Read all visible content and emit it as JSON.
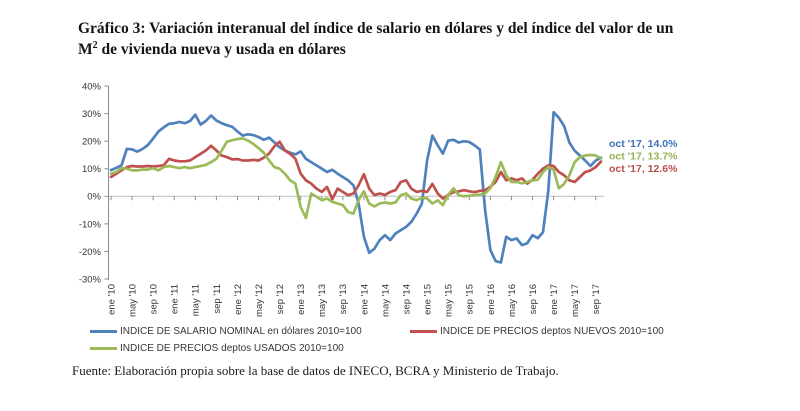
{
  "document": {
    "title_line1": "Gráfico 3: Variación interanual del índice de salario en dólares y del índice del valor de un",
    "title_line2_base": "M",
    "title_line2_sup": "2",
    "title_line2_rest": " de vivienda nueva y usada en dólares",
    "source_note": "Fuente: Elaboración propia sobre la base de datos de INECO, BCRA y Ministerio de Trabajo."
  },
  "chart_data": {
    "type": "line",
    "title": "Gráfico 3: Variación interanual del índice de salario en dólares y del índice del valor de un M² de vivienda nueva y usada en dólares",
    "xlabel": "",
    "ylabel": "",
    "ylim": [
      -30,
      40
    ],
    "grid": "zero-line-only",
    "legend_position": "bottom",
    "x_range_months": "ene '10 a oct '17 (mensual, 94 puntos)",
    "x_tick_every": 4,
    "x_tick_labels": [
      "ene '10",
      "may '10",
      "sep '10",
      "ene '11",
      "may '11",
      "sep '11",
      "ene '12",
      "may '12",
      "sep '12",
      "ene '13",
      "may '13",
      "sep '13",
      "ene '14",
      "may '14",
      "sep '14",
      "ene '15",
      "may '15",
      "sep '15",
      "ene '16",
      "may '16",
      "sep '16",
      "ene '17",
      "may '17",
      "sep '17"
    ],
    "y_tick_labels": [
      "40%",
      "30%",
      "20%",
      "10%",
      "0%",
      "-10%",
      "-20%",
      "-30%"
    ],
    "series": [
      {
        "key": "salario-nominal",
        "name": "INDICE DE SALARIO NOMINAL en dólares 2010=100",
        "color": "#4F81BD",
        "end_value": "14.0%",
        "values": [
          9.5,
          10.3,
          11.2,
          17.2,
          17,
          16.2,
          17.2,
          18.6,
          21,
          23.5,
          25,
          26.3,
          26.5,
          27,
          26.5,
          27.3,
          29.6,
          26,
          27.3,
          29.3,
          27.5,
          26.5,
          25.8,
          25.2,
          23.5,
          22,
          22.5,
          22.2,
          21.5,
          20.5,
          21.3,
          19.6,
          17.8,
          16.6,
          15.8,
          15.2,
          16.3,
          13.6,
          12.4,
          11.2,
          10,
          8.8,
          9.6,
          8.2,
          7,
          5.8,
          4,
          -2.6,
          -14.7,
          -20.5,
          -19,
          -15.9,
          -14.1,
          -15.9,
          -13.5,
          -12.3,
          -11.1,
          -9.3,
          -6.3,
          -2.6,
          13,
          22,
          18.5,
          15.5,
          20.2,
          20.5,
          19.5,
          20,
          19.7,
          18.5,
          17,
          -5,
          -19.5,
          -23.5,
          -24,
          -14.7,
          -15.9,
          -15.3,
          -17.7,
          -17,
          -14.1,
          -15.2,
          -13,
          2,
          30.5,
          28.5,
          25.5,
          19.5,
          16.5,
          14.8,
          13,
          11,
          13,
          14
        ]
      },
      {
        "key": "precios-nuevos",
        "name": "INDICE DE PRECIOS deptos NUEVOS 2010=100",
        "color": "#C0504D",
        "end_value": "12.6%",
        "values": [
          7,
          8.2,
          9.4,
          10.6,
          11,
          10.8,
          10.8,
          11,
          10.8,
          11,
          11.2,
          13.6,
          13,
          12.7,
          12.7,
          13,
          14.2,
          15.4,
          16.6,
          18.3,
          16.6,
          14.8,
          14.2,
          13.4,
          13.5,
          13,
          13,
          13.2,
          13,
          14,
          15.5,
          18.1,
          19.8,
          16.6,
          15.4,
          13.6,
          8.2,
          5.8,
          4.6,
          2.8,
          1.6,
          3.4,
          -1,
          2.8,
          1.6,
          0.4,
          1,
          4,
          8,
          2.8,
          0.4,
          1,
          0.5,
          1.6,
          2.2,
          5.2,
          5.8,
          2.8,
          1.6,
          2,
          1.6,
          4.5,
          1,
          -0.8,
          0.5,
          1.5,
          1.8,
          2.2,
          1.8,
          1.5,
          2,
          2.2,
          3.5,
          5.2,
          8.8,
          5.8,
          6.5,
          5.8,
          6.5,
          4.6,
          6,
          8.2,
          10,
          11.2,
          11,
          8.8,
          7.6,
          5.8,
          5.2,
          7,
          8.8,
          9.4,
          10.6,
          12.6
        ]
      },
      {
        "key": "precios-usados",
        "name": "INDICE DE PRECIOS deptos USADOS 2010=100",
        "color": "#9BBB59",
        "end_value": "13.7%",
        "values": [
          8.2,
          8.8,
          10.2,
          10,
          9.4,
          9.4,
          9.7,
          9.7,
          10.2,
          9.4,
          10.6,
          11,
          10.6,
          10.2,
          10.6,
          10.2,
          10.6,
          11,
          11.4,
          12.4,
          13.6,
          16.5,
          19.8,
          20.3,
          20.8,
          21,
          20.2,
          19,
          17.5,
          15.8,
          13,
          10.6,
          10,
          8.2,
          5.8,
          4.6,
          -3.9,
          -7.9,
          1,
          -0.2,
          -1.4,
          -0.8,
          -2,
          -2.6,
          -3.2,
          -5.7,
          -6.3,
          -1.4,
          1.8,
          -2.6,
          -3.7,
          -2.6,
          -2.2,
          -2.6,
          -2.2,
          0.4,
          1,
          -0.8,
          -1.4,
          -0.5,
          -0.8,
          -2.6,
          -1.5,
          -3.2,
          0.5,
          2.9,
          0.4,
          0,
          0.2,
          0.4,
          0.6,
          1,
          3,
          7,
          12.4,
          7.6,
          5.2,
          5.2,
          4.7,
          5.2,
          5.8,
          6,
          8.8,
          10.6,
          9.7,
          2.9,
          4.5,
          7.6,
          12.4,
          14.2,
          14.8,
          15,
          14.8,
          13.7
        ]
      }
    ],
    "annotations": [
      {
        "key": "salario-nominal",
        "text": "oct '17, 14.0%",
        "color": "#3A72B9"
      },
      {
        "key": "precios-usados",
        "text": "oct '17, 13.7%",
        "color": "#94B254"
      },
      {
        "key": "precios-nuevos",
        "text": "oct '17, 12.6%",
        "color": "#B5504C"
      }
    ]
  }
}
